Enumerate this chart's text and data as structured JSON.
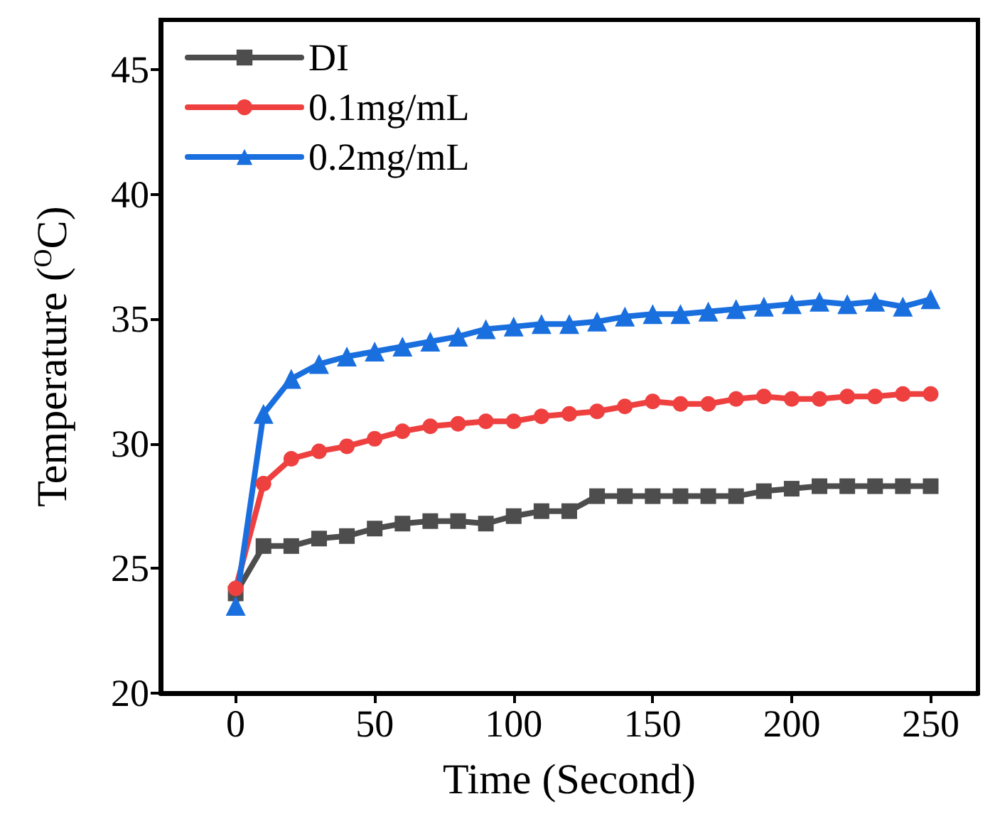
{
  "chart_data": {
    "type": "line",
    "xlabel": "Time (Second)",
    "ylabel": "Temperature ($^{O}$C)",
    "x": [
      0,
      10,
      20,
      30,
      40,
      50,
      60,
      70,
      80,
      90,
      100,
      110,
      120,
      130,
      140,
      150,
      160,
      170,
      180,
      190,
      200,
      210,
      220,
      230,
      240,
      250
    ],
    "series": [
      {
        "name": "DI",
        "color": "#4d4d4d",
        "marker": "square",
        "values": [
          24.0,
          25.9,
          25.9,
          26.2,
          26.3,
          26.6,
          26.8,
          26.9,
          26.9,
          26.8,
          27.1,
          27.3,
          27.3,
          27.9,
          27.9,
          27.9,
          27.9,
          27.9,
          27.9,
          28.1,
          28.2,
          28.3,
          28.3,
          28.3,
          28.3,
          28.3
        ]
      },
      {
        "name": "0.1mg/mL",
        "color": "#ef4040",
        "marker": "circle",
        "values": [
          24.2,
          28.4,
          29.4,
          29.7,
          29.9,
          30.2,
          30.5,
          30.7,
          30.8,
          30.9,
          30.9,
          31.1,
          31.2,
          31.3,
          31.5,
          31.7,
          31.6,
          31.6,
          31.8,
          31.9,
          31.8,
          31.8,
          31.9,
          31.9,
          32.0,
          32.0
        ]
      },
      {
        "name": "0.2mg/mL",
        "color": "#1a6fdf",
        "marker": "triangle",
        "values": [
          23.5,
          31.2,
          32.6,
          33.2,
          33.5,
          33.7,
          33.9,
          34.1,
          34.3,
          34.6,
          34.7,
          34.8,
          34.8,
          34.9,
          35.1,
          35.2,
          35.2,
          35.3,
          35.4,
          35.5,
          35.6,
          35.7,
          35.6,
          35.7,
          35.5,
          35.8
        ]
      }
    ],
    "xlim": [
      -27,
      267
    ],
    "xticks": [
      0,
      50,
      100,
      150,
      200,
      250
    ],
    "ylim": [
      20,
      47
    ],
    "yticks": [
      20,
      25,
      30,
      35,
      40,
      45
    ],
    "grid": false,
    "legend": "top left",
    "line_style": "solid"
  }
}
